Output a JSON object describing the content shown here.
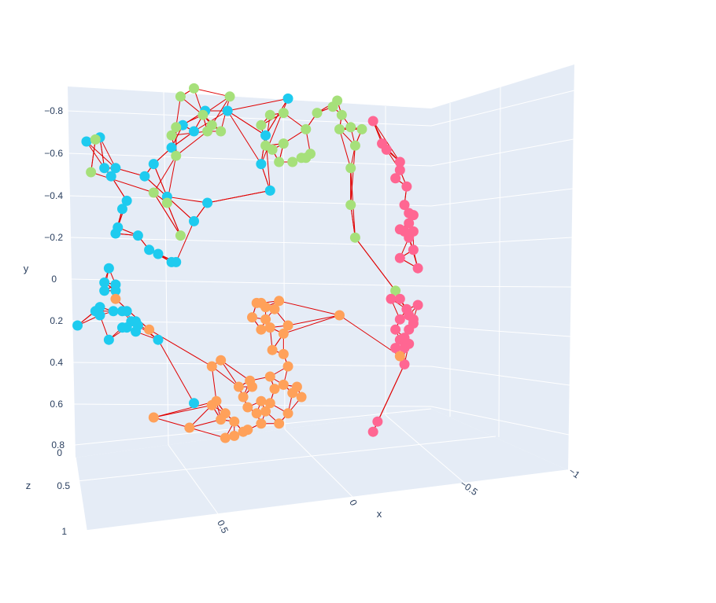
{
  "chart_data": {
    "type": "scatter3d",
    "title": "",
    "axes": {
      "x": {
        "label": "x",
        "ticks": [
          "0.5",
          "0",
          "−0.5",
          "−1"
        ],
        "range": [
          0.75,
          -1.0
        ]
      },
      "y": {
        "label": "y",
        "ticks": [
          "−0.8",
          "−0.6",
          "−0.4",
          "−0.2",
          "0",
          "0.2",
          "0.4",
          "0.6",
          "0.8"
        ],
        "range": [
          -0.9,
          0.85
        ],
        "reversed": true
      },
      "z": {
        "label": "z",
        "ticks": [
          "0",
          "0.5",
          "1"
        ],
        "range": [
          0,
          1
        ]
      }
    },
    "grid": true,
    "legend": "none",
    "edge_color": "#e00000",
    "series": [
      {
        "color": "#1ecbef",
        "points": [
          [
            0.72,
            0.25
          ],
          [
            0.68,
            -0.65
          ],
          [
            0.62,
            -0.67
          ],
          [
            0.6,
            -0.52
          ],
          [
            0.57,
            -0.48
          ],
          [
            0.55,
            -0.52
          ],
          [
            0.52,
            -0.32
          ],
          [
            0.5,
            -0.36
          ],
          [
            0.54,
            -0.23
          ],
          [
            0.55,
            -0.2
          ],
          [
            0.45,
            -0.19
          ],
          [
            0.4,
            -0.12
          ],
          [
            0.36,
            -0.1
          ],
          [
            0.3,
            -0.06
          ],
          [
            0.28,
            -0.06
          ],
          [
            0.2,
            -0.26
          ],
          [
            0.32,
            -0.38
          ],
          [
            0.14,
            -0.35
          ],
          [
            0.38,
            -0.54
          ],
          [
            0.42,
            -0.48
          ],
          [
            0.3,
            -0.62
          ],
          [
            0.25,
            -0.73
          ],
          [
            0.2,
            -0.7
          ],
          [
            0.15,
            -0.8
          ],
          [
            0.05,
            -0.8
          ],
          [
            -0.12,
            -0.68
          ],
          [
            -0.1,
            -0.54
          ],
          [
            -0.14,
            -0.41
          ],
          [
            -0.22,
            -0.86
          ],
          [
            0.58,
            -0.03
          ],
          [
            0.6,
            0.04
          ],
          [
            0.6,
            0.08
          ],
          [
            0.55,
            0.05
          ],
          [
            0.55,
            0.08
          ],
          [
            0.62,
            0.16
          ],
          [
            0.64,
            0.18
          ],
          [
            0.62,
            0.2
          ],
          [
            0.56,
            0.18
          ],
          [
            0.52,
            0.18
          ],
          [
            0.5,
            0.18
          ],
          [
            0.48,
            0.23
          ],
          [
            0.46,
            0.23
          ],
          [
            0.5,
            0.26
          ],
          [
            0.52,
            0.26
          ],
          [
            0.45,
            0.25
          ],
          [
            0.46,
            0.28
          ],
          [
            0.36,
            0.32
          ],
          [
            0.58,
            0.32
          ],
          [
            0.2,
            0.63
          ]
        ]
      },
      {
        "color": "#a6e07a",
        "points": [
          [
            0.66,
            -0.5
          ],
          [
            0.64,
            -0.66
          ],
          [
            0.38,
            -0.4
          ],
          [
            0.32,
            -0.35
          ],
          [
            0.28,
            -0.58
          ],
          [
            0.26,
            -0.19
          ],
          [
            0.3,
            -0.68
          ],
          [
            0.28,
            -0.72
          ],
          [
            0.26,
            -0.87
          ],
          [
            0.2,
            -0.91
          ],
          [
            0.16,
            -0.78
          ],
          [
            0.12,
            -0.73
          ],
          [
            0.14,
            -0.7
          ],
          [
            0.08,
            -0.7
          ],
          [
            0.04,
            -0.87
          ],
          [
            -0.1,
            -0.73
          ],
          [
            -0.12,
            -0.63
          ],
          [
            -0.15,
            -0.61
          ],
          [
            -0.14,
            -0.78
          ],
          [
            -0.2,
            -0.79
          ],
          [
            -0.2,
            -0.64
          ],
          [
            -0.18,
            -0.55
          ],
          [
            -0.24,
            -0.55
          ],
          [
            -0.28,
            -0.57
          ],
          [
            -0.32,
            -0.59
          ],
          [
            -0.3,
            -0.71
          ],
          [
            -0.35,
            -0.79
          ],
          [
            -0.42,
            -0.82
          ],
          [
            -0.44,
            -0.85
          ],
          [
            -0.46,
            -0.78
          ],
          [
            -0.45,
            -0.71
          ],
          [
            -0.5,
            -0.72
          ],
          [
            -0.52,
            -0.63
          ],
          [
            -0.5,
            -0.52
          ],
          [
            -0.5,
            -0.34
          ],
          [
            -0.52,
            -0.18
          ],
          [
            -0.55,
            -0.71
          ],
          [
            -0.3,
            -0.57
          ],
          [
            -0.7,
            0.08
          ]
        ]
      },
      {
        "color": "#ff6692",
        "points": [
          [
            -0.6,
            -0.75
          ],
          [
            -0.64,
            -0.64
          ],
          [
            -0.66,
            -0.61
          ],
          [
            -0.7,
            -0.47
          ],
          [
            -0.72,
            -0.51
          ],
          [
            -0.72,
            -0.55
          ],
          [
            -0.75,
            -0.43
          ],
          [
            -0.74,
            -0.34
          ],
          [
            -0.76,
            -0.3
          ],
          [
            -0.76,
            -0.25
          ],
          [
            -0.78,
            -0.29
          ],
          [
            -0.74,
            -0.21
          ],
          [
            -0.76,
            -0.18
          ],
          [
            -0.78,
            -0.21
          ],
          [
            -0.72,
            -0.22
          ],
          [
            -0.72,
            -0.08
          ],
          [
            -0.78,
            -0.12
          ],
          [
            -0.8,
            -0.03
          ],
          [
            -0.68,
            0.12
          ],
          [
            -0.72,
            0.12
          ],
          [
            -0.75,
            0.17
          ],
          [
            -0.76,
            0.2
          ],
          [
            -0.78,
            0.22
          ],
          [
            -0.8,
            0.15
          ],
          [
            -0.72,
            0.22
          ],
          [
            -0.7,
            0.27
          ],
          [
            -0.72,
            0.32
          ],
          [
            -0.74,
            0.31
          ],
          [
            -0.76,
            0.34
          ],
          [
            -0.7,
            0.36
          ],
          [
            -0.76,
            0.27
          ],
          [
            -0.74,
            0.36
          ],
          [
            -0.78,
            0.24
          ],
          [
            -0.74,
            0.44
          ],
          [
            -0.62,
            0.72
          ],
          [
            -0.6,
            0.77
          ]
        ]
      },
      {
        "color": "#ffa15a",
        "points": [
          [
            0.55,
            0.12
          ],
          [
            0.4,
            0.27
          ],
          [
            0.38,
            0.7
          ],
          [
            -0.08,
            0.14
          ],
          [
            -0.1,
            0.14
          ],
          [
            -0.12,
            0.16
          ],
          [
            -0.06,
            0.21
          ],
          [
            -0.1,
            0.27
          ],
          [
            -0.14,
            0.26
          ],
          [
            -0.12,
            0.22
          ],
          [
            -0.18,
            0.13
          ],
          [
            -0.16,
            0.17
          ],
          [
            -0.22,
            0.25
          ],
          [
            -0.2,
            0.29
          ],
          [
            -0.15,
            0.37
          ],
          [
            -0.2,
            0.39
          ],
          [
            -0.22,
            0.45
          ],
          [
            0.08,
            0.42
          ],
          [
            0.12,
            0.45
          ],
          [
            -0.05,
            0.52
          ],
          [
            0.0,
            0.55
          ],
          [
            -0.02,
            0.6
          ],
          [
            0.1,
            0.62
          ],
          [
            0.12,
            0.64
          ],
          [
            -0.04,
            0.65
          ],
          [
            0.06,
            0.68
          ],
          [
            0.08,
            0.71
          ],
          [
            0.02,
            0.72
          ],
          [
            -0.08,
            0.68
          ],
          [
            -0.1,
            0.62
          ],
          [
            -0.12,
            0.67
          ],
          [
            -0.14,
            0.63
          ],
          [
            -0.16,
            0.56
          ],
          [
            -0.2,
            0.54
          ],
          [
            -0.22,
            0.68
          ],
          [
            -0.18,
            0.73
          ],
          [
            -0.1,
            0.73
          ],
          [
            -0.04,
            0.76
          ],
          [
            -0.02,
            0.77
          ],
          [
            0.02,
            0.79
          ],
          [
            0.06,
            0.8
          ],
          [
            -0.24,
            0.58
          ],
          [
            -0.26,
            0.55
          ],
          [
            -0.28,
            0.6
          ],
          [
            0.22,
            0.75
          ],
          [
            -0.45,
            0.2
          ],
          [
            -0.72,
            0.4
          ],
          [
            -0.14,
            0.5
          ],
          [
            -0.06,
            0.55
          ]
        ]
      }
    ]
  }
}
